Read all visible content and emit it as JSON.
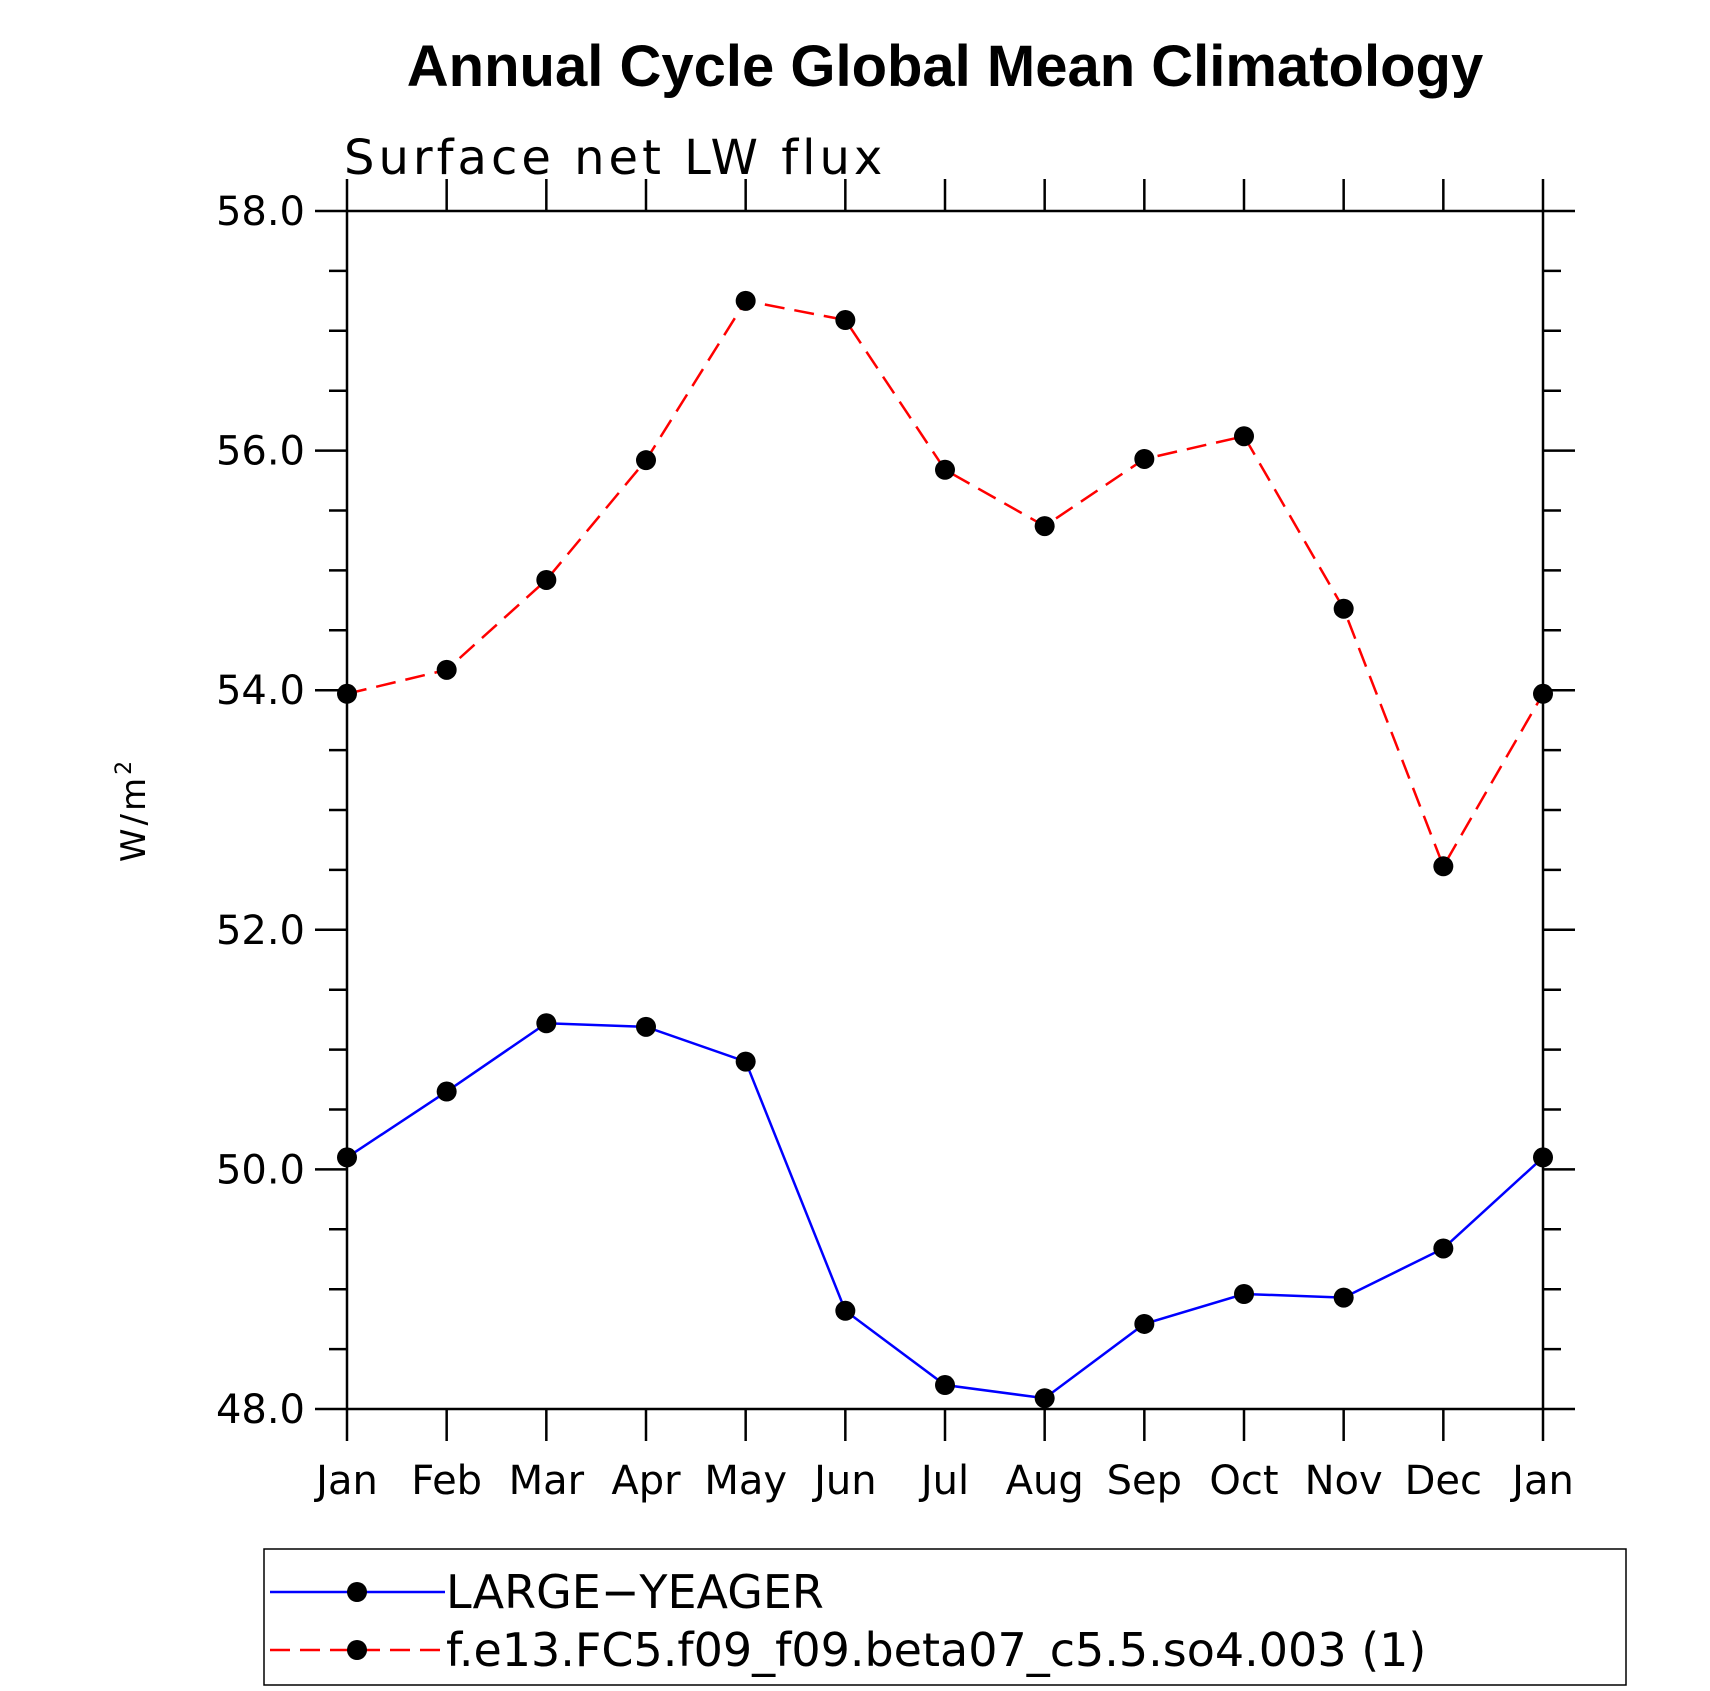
{
  "chart_data": {
    "type": "line",
    "title": "Annual Cycle Global Mean Climatology",
    "subtitle": "Surface net LW flux",
    "ylabel": "W/m",
    "ylabel_sup": "2",
    "xlabel": "",
    "categories": [
      "Jan",
      "Feb",
      "Mar",
      "Apr",
      "May",
      "Jun",
      "Jul",
      "Aug",
      "Sep",
      "Oct",
      "Nov",
      "Dec",
      "Jan"
    ],
    "ylim": [
      48.0,
      58.0
    ],
    "yticks": [
      "48.0",
      "50.0",
      "52.0",
      "54.0",
      "56.0",
      "58.0"
    ],
    "grid": false,
    "legend_position": "bottom",
    "series": [
      {
        "name": "LARGE−YEAGER",
        "color": "#0000ff",
        "dash": "solid",
        "marker": "filled-circle",
        "values": [
          50.1,
          50.65,
          51.22,
          51.19,
          50.9,
          48.82,
          48.2,
          48.09,
          48.71,
          48.96,
          48.93,
          49.34,
          50.1
        ]
      },
      {
        "name": "f.e13.FC5.f09_f09.beta07_c5.5.so4.003 (1)",
        "color": "#ff0000",
        "dash": "dashed",
        "marker": "filled-circle",
        "values": [
          53.97,
          54.17,
          54.92,
          55.92,
          57.25,
          57.09,
          55.84,
          55.37,
          55.93,
          56.12,
          54.68,
          52.53,
          53.97
        ]
      }
    ]
  }
}
